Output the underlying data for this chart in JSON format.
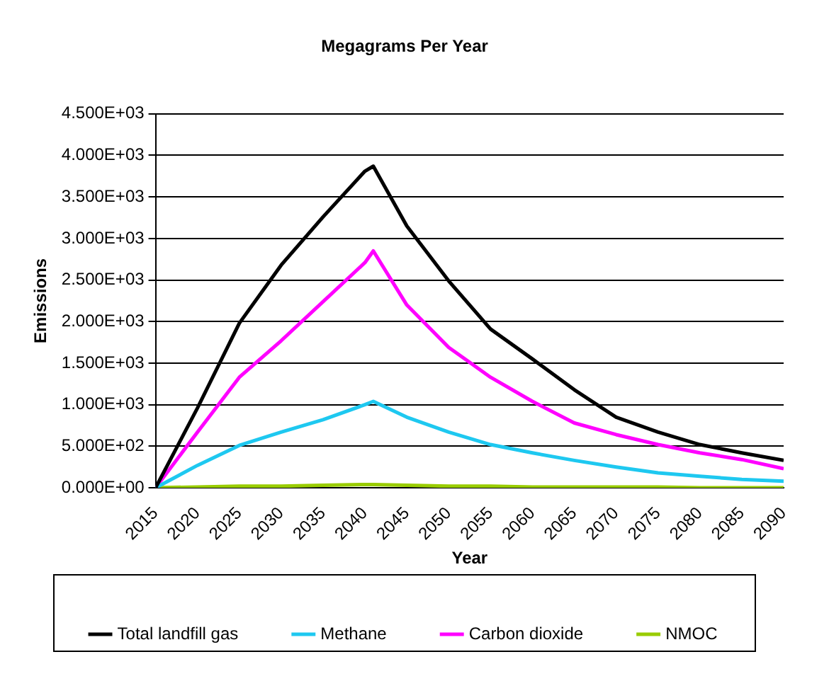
{
  "chart_data": {
    "type": "line",
    "title": "Megagrams Per Year",
    "xlabel": "Year",
    "ylabel": "Emissions",
    "x": [
      2015,
      2020,
      2025,
      2030,
      2035,
      2040,
      2041,
      2045,
      2050,
      2055,
      2060,
      2065,
      2070,
      2075,
      2080,
      2085,
      2090
    ],
    "series": [
      {
        "name": "Total landfill gas",
        "color": "#000000",
        "values": [
          0,
          960,
          1980,
          2680,
          3260,
          3810,
          3870,
          3150,
          2490,
          1910,
          1550,
          1180,
          850,
          670,
          520,
          420,
          330
        ]
      },
      {
        "name": "Methane",
        "color": "#1ec8f0",
        "values": [
          0,
          270,
          510,
          670,
          820,
          1000,
          1040,
          850,
          670,
          520,
          420,
          330,
          250,
          180,
          140,
          100,
          80
        ]
      },
      {
        "name": "Carbon dioxide",
        "color": "#ff00ff",
        "values": [
          0,
          670,
          1330,
          1770,
          2240,
          2710,
          2850,
          2200,
          1690,
          1330,
          1040,
          780,
          640,
          520,
          420,
          340,
          230
        ]
      },
      {
        "name": "NMOC",
        "color": "#99cc00",
        "values": [
          0,
          10,
          20,
          20,
          30,
          40,
          40,
          30,
          20,
          20,
          10,
          10,
          10,
          10,
          0,
          0,
          0
        ]
      }
    ],
    "xlim": [
      2015,
      2090
    ],
    "xticks": [
      2015,
      2020,
      2025,
      2030,
      2035,
      2040,
      2045,
      2050,
      2055,
      2060,
      2065,
      2070,
      2075,
      2080,
      2085,
      2090
    ],
    "ylim": [
      0,
      4500
    ],
    "yticks": [
      {
        "value": 0,
        "label": "0.000E+00"
      },
      {
        "value": 500,
        "label": "5.000E+02"
      },
      {
        "value": 1000,
        "label": "1.000E+03"
      },
      {
        "value": 1500,
        "label": "1.500E+03"
      },
      {
        "value": 2000,
        "label": "2.000E+03"
      },
      {
        "value": 2500,
        "label": "2.500E+03"
      },
      {
        "value": 3000,
        "label": "3.000E+03"
      },
      {
        "value": 3500,
        "label": "3.500E+03"
      },
      {
        "value": 4000,
        "label": "4.000E+03"
      },
      {
        "value": 4500,
        "label": "4.500E+03"
      }
    ],
    "grid": "y",
    "legend": "bottom",
    "marker": "none",
    "line_style": "solid"
  }
}
